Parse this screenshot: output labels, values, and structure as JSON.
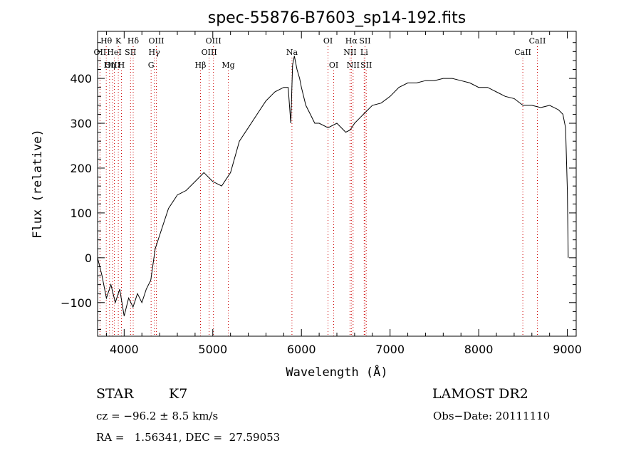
{
  "chart_data": {
    "type": "line",
    "title": "spec-55876-B7603_sp14-192.fits",
    "xlabel": "Wavelength (Å)",
    "ylabel": "Flux (relative)",
    "xlim": [
      3700,
      9100
    ],
    "ylim": [
      -175,
      505
    ],
    "x_ticks": [
      "4000",
      "5000",
      "6000",
      "7000",
      "8000",
      "9000"
    ],
    "y_ticks": [
      "-100",
      "0",
      "100",
      "200",
      "300",
      "400"
    ],
    "series": [
      {
        "x": [
          3700,
          3750,
          3800,
          3850,
          3900,
          3950,
          4000,
          4050,
          4100,
          4150,
          4200,
          4250,
          4300,
          4350,
          4400,
          4500,
          4600,
          4700,
          4800,
          4900,
          5000,
          5100,
          5200,
          5300,
          5400,
          5500,
          5600,
          5700,
          5800,
          5850,
          5880,
          5900,
          5920,
          5950,
          5980,
          6000,
          6050,
          6100,
          6150,
          6200,
          6300,
          6400,
          6500,
          6550,
          6600,
          6650,
          6700,
          6750,
          6800,
          6900,
          7000,
          7100,
          7200,
          7300,
          7400,
          7500,
          7600,
          7700,
          7800,
          7900,
          8000,
          8100,
          8200,
          8300,
          8400,
          8500,
          8600,
          8700,
          8800,
          8900,
          8950,
          8980,
          9000,
          9010
        ],
        "y": [
          0,
          -40,
          -90,
          -60,
          -100,
          -70,
          -130,
          -90,
          -110,
          -80,
          -100,
          -70,
          -50,
          20,
          50,
          110,
          140,
          150,
          170,
          190,
          170,
          160,
          190,
          260,
          290,
          320,
          350,
          370,
          380,
          380,
          300,
          430,
          450,
          420,
          400,
          380,
          340,
          320,
          300,
          300,
          290,
          300,
          280,
          285,
          300,
          310,
          320,
          330,
          340,
          345,
          360,
          380,
          390,
          390,
          395,
          395,
          400,
          400,
          395,
          390,
          380,
          380,
          370,
          360,
          355,
          340,
          340,
          335,
          340,
          330,
          320,
          290,
          150,
          0
        ]
      }
    ],
    "spectral_lines": [
      {
        "label": "Hθ",
        "x": 3798,
        "row": 1
      },
      {
        "label": "OII",
        "x": 3727,
        "row": 2
      },
      {
        "label": "OIII",
        "x": 3869,
        "row": 3
      },
      {
        "label": "K",
        "x": 3934,
        "row": 1
      },
      {
        "label": "HeI",
        "x": 3889,
        "row": 2
      },
      {
        "label": "Hη",
        "x": 3835,
        "row": 3
      },
      {
        "label": "SII",
        "x": 4072,
        "row": 2
      },
      {
        "label": "H",
        "x": 3969,
        "row": 3
      },
      {
        "label": "Hδ",
        "x": 4102,
        "row": 1
      },
      {
        "label": "OIII",
        "x": 4363,
        "row": 1
      },
      {
        "label": "Hγ",
        "x": 4340,
        "row": 2
      },
      {
        "label": "G",
        "x": 4304,
        "row": 3
      },
      {
        "label": "Hβ",
        "x": 4861,
        "row": 3
      },
      {
        "label": "OIII",
        "x": 5007,
        "row": 1
      },
      {
        "label": "OIII",
        "x": 4959,
        "row": 2
      },
      {
        "label": "Mg",
        "x": 5175,
        "row": 3
      },
      {
        "label": "Na",
        "x": 5893,
        "row": 2
      },
      {
        "label": "OI",
        "x": 6300,
        "row": 1
      },
      {
        "label": "OI",
        "x": 6364,
        "row": 3
      },
      {
        "label": "Hα",
        "x": 6563,
        "row": 1
      },
      {
        "label": "SII",
        "x": 6717,
        "row": 1
      },
      {
        "label": "NII",
        "x": 6548,
        "row": 2
      },
      {
        "label": "Li",
        "x": 6708,
        "row": 2
      },
      {
        "label": "NII",
        "x": 6583,
        "row": 3
      },
      {
        "label": "SII",
        "x": 6731,
        "row": 3
      },
      {
        "label": "CaII",
        "x": 8662,
        "row": 1
      },
      {
        "label": "CaII",
        "x": 8498,
        "row": 2
      }
    ]
  },
  "info": {
    "object_class": "STAR",
    "subclass": "K7",
    "cz": "cz = −96.2 ± 8.5 km/s",
    "radec": "RA =   1.56341, DEC =  27.59053",
    "survey": "LAMOST DR2",
    "obs_date": "Obs−Date: 20111110"
  },
  "colors": {
    "line": "#000000",
    "marker_line": "#cc0000",
    "axis": "#000000"
  }
}
